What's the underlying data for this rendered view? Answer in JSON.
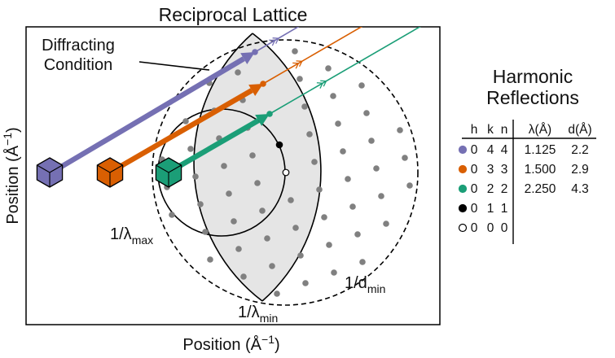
{
  "figure": {
    "title": "Reciprocal Lattice",
    "xlabel": "Position (Å",
    "ylabel": "Position (Å",
    "axis_unit_exponent": "−1",
    "annotations": {
      "diffracting_line1": "Diffracting",
      "diffracting_line2": "Condition",
      "lambda_max_main": "1/λ",
      "lambda_max_sub": "max",
      "lambda_min_main": "1/λ",
      "lambda_min_sub": "min",
      "dmin_main": "1/d",
      "dmin_sub": "min"
    },
    "colors": {
      "purple": "#7570b3",
      "orange": "#d95f02",
      "green": "#1b9e77",
      "lattice_point": "#808080",
      "shaded_region": "#e5e5e5"
    }
  },
  "table": {
    "title_line1": "Harmonic",
    "title_line2": "Reflections",
    "headers": [
      "h",
      "k",
      "n",
      "λ(Å)",
      "d(Å)"
    ],
    "rows": [
      {
        "marker": "purple",
        "h": "0",
        "k": "4",
        "n": "4",
        "lambda": "1.125",
        "d": "2.2"
      },
      {
        "marker": "orange",
        "h": "0",
        "k": "3",
        "n": "3",
        "lambda": "1.500",
        "d": "2.9"
      },
      {
        "marker": "green",
        "h": "0",
        "k": "2",
        "n": "2",
        "lambda": "2.250",
        "d": "4.3"
      },
      {
        "marker": "black",
        "h": "0",
        "k": "1",
        "n": "1",
        "lambda": "",
        "d": ""
      },
      {
        "marker": "open",
        "h": "0",
        "k": "0",
        "n": "0",
        "lambda": "",
        "d": ""
      }
    ]
  }
}
